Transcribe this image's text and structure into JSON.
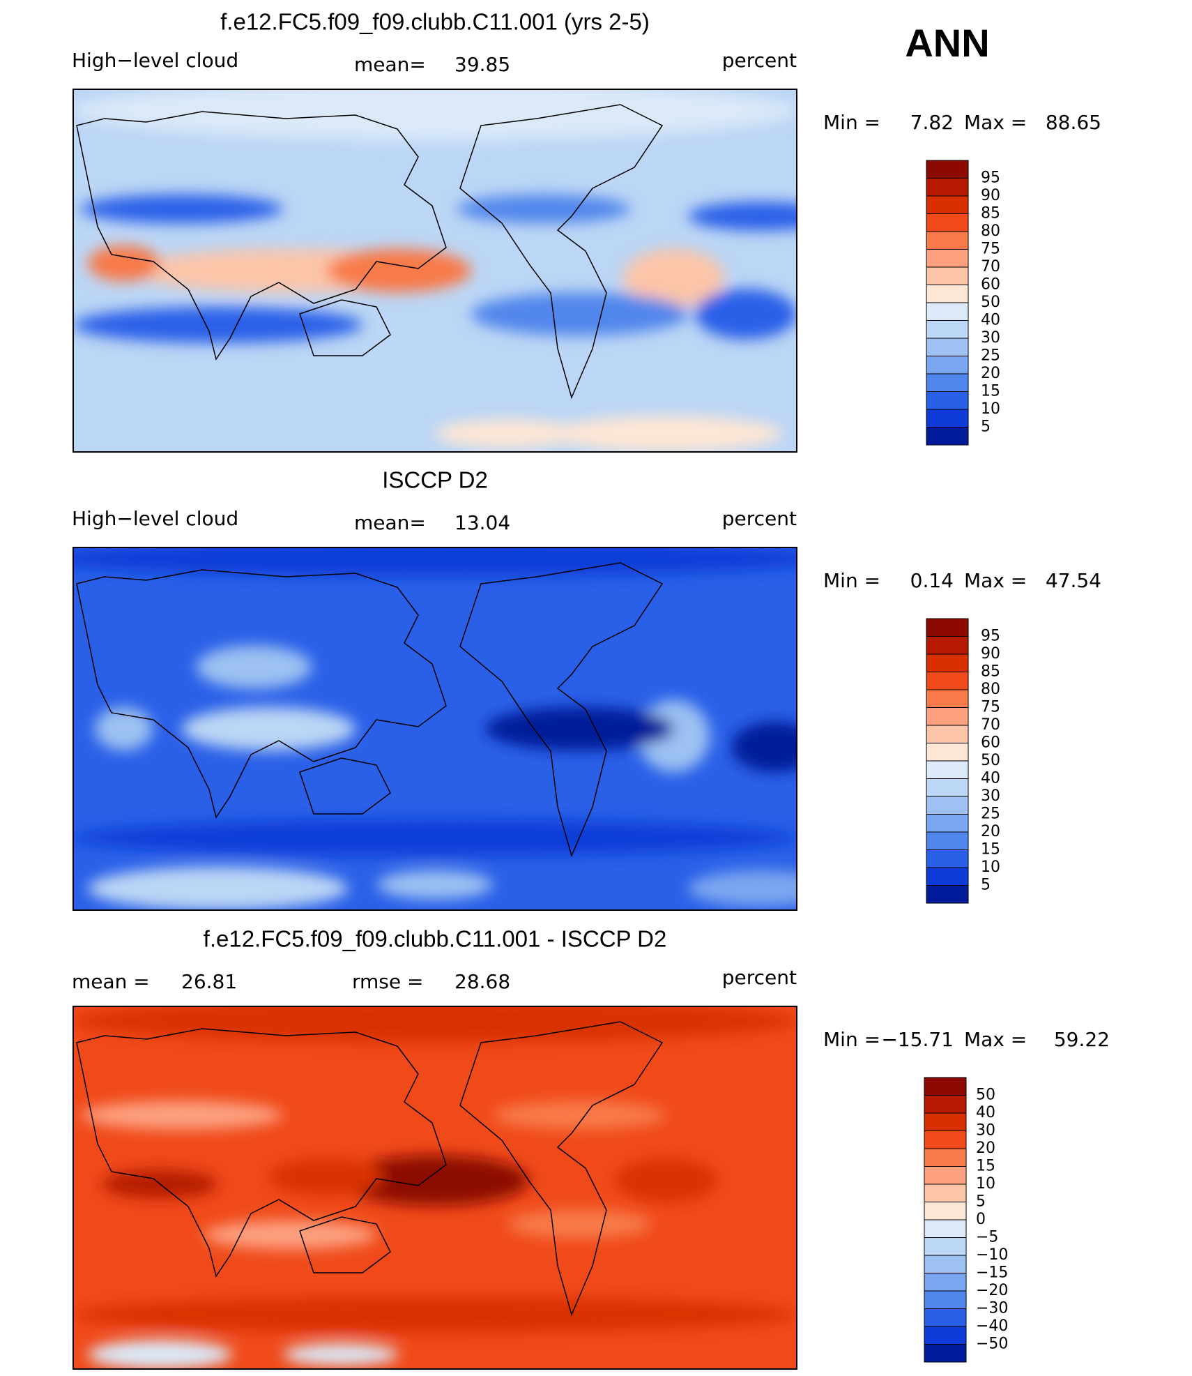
{
  "header": {
    "season": "ANN"
  },
  "panels": [
    {
      "title": "f.e12.FC5.f09_f09.clubb.C11.001 (yrs 2-5)",
      "left": "High−level cloud",
      "stat_label": "mean=",
      "stat": 39.85,
      "units": "percent",
      "min_label": "Min =",
      "min": 7.82,
      "max_label": "Max =",
      "max": 88.65,
      "colorbar": [
        95,
        90,
        85,
        80,
        75,
        70,
        60,
        50,
        40,
        30,
        25,
        20,
        15,
        10,
        5
      ]
    },
    {
      "title": "ISCCP D2",
      "left": "High−level cloud",
      "stat_label": "mean=",
      "stat": 13.04,
      "units": "percent",
      "min_label": "Min =",
      "min": 0.14,
      "max_label": "Max =",
      "max": 47.54,
      "colorbar": [
        95,
        90,
        85,
        80,
        75,
        70,
        60,
        50,
        40,
        30,
        25,
        20,
        15,
        10,
        5
      ]
    },
    {
      "title": "f.e12.FC5.f09_f09.clubb.C11.001 - ISCCP D2",
      "left": "mean =",
      "left_value": 26.81,
      "stat_label": "rmse =",
      "stat": 28.68,
      "units": "percent",
      "min_label": "Min =",
      "min": "−15.71",
      "max_label": "Max =",
      "max": 59.22,
      "colorbar": [
        50,
        40,
        30,
        20,
        15,
        10,
        5,
        0,
        "−5",
        "−10",
        "−15",
        "−20",
        "−30",
        "−40",
        "−50"
      ]
    }
  ]
}
